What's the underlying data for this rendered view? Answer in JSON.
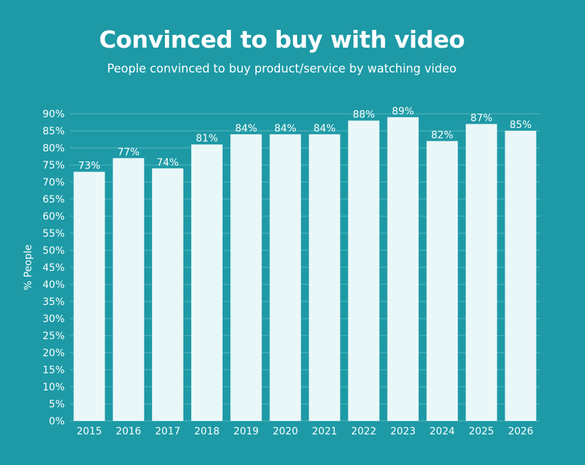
{
  "colors": {
    "background": "#1d9aa6",
    "bar": "#eaf7f8",
    "gridline": "#56b6be",
    "text": "#ffffff"
  },
  "chart_data": {
    "type": "bar",
    "title": "Convinced to buy with video",
    "subtitle": "People convinced to buy product/service by watching video",
    "xlabel": "",
    "ylabel": "% People",
    "categories": [
      "2015",
      "2016",
      "2017",
      "2018",
      "2019",
      "2020",
      "2021",
      "2022",
      "2023",
      "2024",
      "2025",
      "2026"
    ],
    "values": [
      73,
      77,
      74,
      81,
      84,
      84,
      84,
      88,
      89,
      82,
      87,
      85
    ],
    "data_labels": [
      "73%",
      "77%",
      "74%",
      "81%",
      "84%",
      "84%",
      "84%",
      "88%",
      "89%",
      "82%",
      "87%",
      "85%"
    ],
    "ylim": [
      0,
      90
    ],
    "yticks": [
      "0%",
      "5%",
      "10%",
      "15%",
      "20%",
      "25%",
      "30%",
      "35%",
      "40%",
      "45%",
      "50%",
      "55%",
      "60%",
      "65%",
      "70%",
      "75%",
      "80%",
      "85%",
      "90%"
    ],
    "grid": true,
    "legend": "none"
  }
}
